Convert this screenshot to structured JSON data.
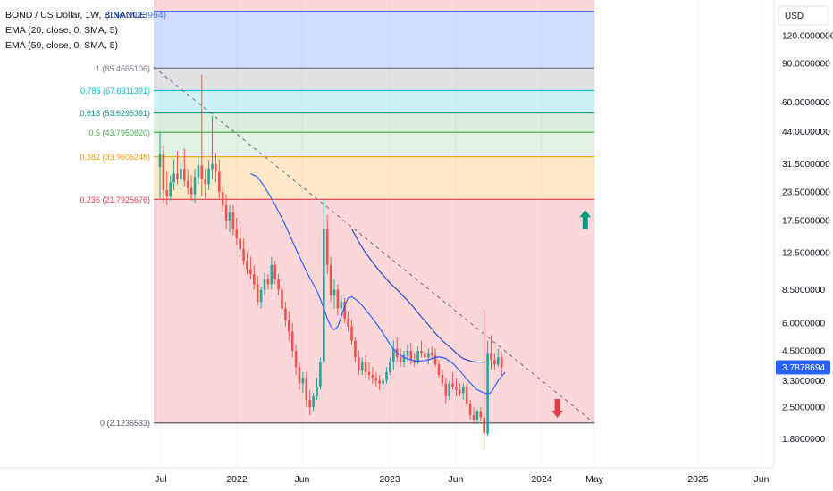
{
  "legend": {
    "title": "BOND / US Dollar, 1W, BINANCE",
    "overlap_value": "(154.3923964)",
    "ema20": "EMA (20, close, 0, SMA, 5)",
    "ema50": "EMA (50, close, 0, SMA, 5)"
  },
  "currency": "USD",
  "colors": {
    "candle_up": "#26a69a",
    "candle_down": "#ef5350",
    "ema20": "#2962ff",
    "ema50": "#2948c8",
    "price_badge": "#2962ff",
    "arrow_up": "#089981",
    "arrow_down": "#e03c4a"
  },
  "chart_data": {
    "type": "candlestick",
    "y_scale": "log",
    "y_ticks": [
      "120.0000000",
      "90.0000000",
      "60.0000000",
      "44.0000000",
      "31.5000000",
      "23.5000000",
      "17.5000000",
      "12.5000000",
      "8.5000000",
      "6.0000000",
      "4.5000000",
      "3.3000000",
      "2.5000000",
      "1.8000000"
    ],
    "x_ticks": [
      "Jul",
      "2022",
      "Jun",
      "2023",
      "Jun",
      "2024",
      "May",
      "2025",
      "Jun"
    ],
    "current_price": "3.7878694",
    "fib_levels": [
      {
        "label": "1 (85.4665106)",
        "value": 85.4665106
      },
      {
        "label": "0.786 (67.6311391)",
        "value": 67.6311391
      },
      {
        "label": "0.618 (53.6295391)",
        "value": 53.6295391
      },
      {
        "label": "0.5 (43.7950820)",
        "value": 43.795082
      },
      {
        "label": "0.382 (33.9606248)",
        "value": 33.9606248
      },
      {
        "label": "0.236 (21.7925676)",
        "value": 21.7925676
      },
      {
        "label": "0 (2.1236533)",
        "value": 2.1236533
      }
    ],
    "fib_extension_top": 154.3923964,
    "candles": [
      {
        "o": 30.5,
        "h": 44.0,
        "l": 22.0,
        "c": 35.0
      },
      {
        "o": 35.0,
        "h": 38.0,
        "l": 21.0,
        "c": 24.0
      },
      {
        "o": 24.0,
        "h": 29.0,
        "l": 20.5,
        "c": 22.5
      },
      {
        "o": 22.5,
        "h": 28.0,
        "l": 21.5,
        "c": 26.0
      },
      {
        "o": 26.0,
        "h": 33.0,
        "l": 24.0,
        "c": 28.5
      },
      {
        "o": 28.5,
        "h": 36.0,
        "l": 25.5,
        "c": 27.0
      },
      {
        "o": 27.0,
        "h": 32.0,
        "l": 24.0,
        "c": 30.0
      },
      {
        "o": 30.0,
        "h": 37.0,
        "l": 25.0,
        "c": 26.5
      },
      {
        "o": 26.5,
        "h": 30.0,
        "l": 23.0,
        "c": 24.5
      },
      {
        "o": 24.5,
        "h": 28.0,
        "l": 21.5,
        "c": 23.0
      },
      {
        "o": 23.0,
        "h": 30.0,
        "l": 21.0,
        "c": 27.5
      },
      {
        "o": 27.5,
        "h": 34.0,
        "l": 25.5,
        "c": 31.0
      },
      {
        "o": 31.0,
        "h": 80.0,
        "l": 22.5,
        "c": 27.0
      },
      {
        "o": 27.0,
        "h": 30.0,
        "l": 22.0,
        "c": 25.5
      },
      {
        "o": 25.5,
        "h": 33.0,
        "l": 24.0,
        "c": 30.0
      },
      {
        "o": 30.0,
        "h": 52.0,
        "l": 27.0,
        "c": 31.5
      },
      {
        "o": 31.5,
        "h": 35.5,
        "l": 26.0,
        "c": 29.0
      },
      {
        "o": 29.0,
        "h": 33.0,
        "l": 22.0,
        "c": 23.5
      },
      {
        "o": 23.5,
        "h": 25.0,
        "l": 19.0,
        "c": 20.5
      },
      {
        "o": 20.5,
        "h": 23.0,
        "l": 16.0,
        "c": 17.5
      },
      {
        "o": 17.5,
        "h": 20.5,
        "l": 15.5,
        "c": 19.0
      },
      {
        "o": 19.0,
        "h": 20.5,
        "l": 15.0,
        "c": 16.0
      },
      {
        "o": 16.0,
        "h": 18.0,
        "l": 13.5,
        "c": 14.5
      },
      {
        "o": 14.5,
        "h": 16.5,
        "l": 12.5,
        "c": 13.0
      },
      {
        "o": 13.0,
        "h": 14.5,
        "l": 11.0,
        "c": 11.5
      },
      {
        "o": 11.5,
        "h": 12.5,
        "l": 10.0,
        "c": 10.5
      },
      {
        "o": 10.5,
        "h": 12.0,
        "l": 9.5,
        "c": 10.0
      },
      {
        "o": 10.0,
        "h": 11.0,
        "l": 8.5,
        "c": 9.0
      },
      {
        "o": 9.0,
        "h": 9.8,
        "l": 7.2,
        "c": 7.5
      },
      {
        "o": 7.5,
        "h": 8.8,
        "l": 7.0,
        "c": 8.5
      },
      {
        "o": 8.5,
        "h": 10.2,
        "l": 8.0,
        "c": 9.5
      },
      {
        "o": 9.5,
        "h": 10.0,
        "l": 8.5,
        "c": 9.0
      },
      {
        "o": 9.0,
        "h": 12.0,
        "l": 8.5,
        "c": 11.0
      },
      {
        "o": 11.0,
        "h": 11.5,
        "l": 9.0,
        "c": 9.5
      },
      {
        "o": 9.5,
        "h": 10.0,
        "l": 8.0,
        "c": 8.5
      },
      {
        "o": 8.5,
        "h": 9.0,
        "l": 6.8,
        "c": 7.0
      },
      {
        "o": 7.0,
        "h": 7.5,
        "l": 5.8,
        "c": 6.2
      },
      {
        "o": 6.2,
        "h": 6.8,
        "l": 5.0,
        "c": 5.5
      },
      {
        "o": 5.5,
        "h": 6.0,
        "l": 4.2,
        "c": 4.5
      },
      {
        "o": 4.5,
        "h": 4.8,
        "l": 3.5,
        "c": 3.8
      },
      {
        "o": 3.8,
        "h": 4.0,
        "l": 3.0,
        "c": 3.2
      },
      {
        "o": 3.2,
        "h": 3.6,
        "l": 2.9,
        "c": 3.4
      },
      {
        "o": 3.4,
        "h": 3.6,
        "l": 2.5,
        "c": 2.7
      },
      {
        "o": 2.7,
        "h": 3.0,
        "l": 2.3,
        "c": 2.5
      },
      {
        "o": 2.5,
        "h": 2.9,
        "l": 2.4,
        "c": 2.8
      },
      {
        "o": 2.8,
        "h": 3.4,
        "l": 2.7,
        "c": 3.1
      },
      {
        "o": 3.1,
        "h": 4.2,
        "l": 3.0,
        "c": 4.0
      },
      {
        "o": 4.0,
        "h": 22.0,
        "l": 3.9,
        "c": 16.0
      },
      {
        "o": 16.0,
        "h": 18.5,
        "l": 10.0,
        "c": 11.0
      },
      {
        "o": 11.0,
        "h": 12.0,
        "l": 7.5,
        "c": 8.0
      },
      {
        "o": 8.0,
        "h": 9.5,
        "l": 7.0,
        "c": 8.5
      },
      {
        "o": 8.5,
        "h": 9.0,
        "l": 6.5,
        "c": 7.0
      },
      {
        "o": 7.0,
        "h": 8.0,
        "l": 6.5,
        "c": 7.5
      },
      {
        "o": 7.5,
        "h": 7.8,
        "l": 6.0,
        "c": 6.3
      },
      {
        "o": 6.3,
        "h": 6.8,
        "l": 5.5,
        "c": 5.8
      },
      {
        "o": 5.8,
        "h": 6.2,
        "l": 4.8,
        "c": 5.0
      },
      {
        "o": 5.0,
        "h": 5.2,
        "l": 4.0,
        "c": 4.2
      },
      {
        "o": 4.2,
        "h": 4.5,
        "l": 3.5,
        "c": 3.7
      },
      {
        "o": 3.7,
        "h": 4.2,
        "l": 3.5,
        "c": 4.0
      },
      {
        "o": 4.0,
        "h": 4.3,
        "l": 3.4,
        "c": 3.6
      },
      {
        "o": 3.6,
        "h": 4.0,
        "l": 3.3,
        "c": 3.5
      },
      {
        "o": 3.5,
        "h": 3.8,
        "l": 3.2,
        "c": 3.4
      },
      {
        "o": 3.4,
        "h": 3.6,
        "l": 3.1,
        "c": 3.3
      },
      {
        "o": 3.3,
        "h": 3.5,
        "l": 3.0,
        "c": 3.2
      },
      {
        "o": 3.2,
        "h": 3.4,
        "l": 3.0,
        "c": 3.3
      },
      {
        "o": 3.3,
        "h": 3.8,
        "l": 3.2,
        "c": 3.6
      },
      {
        "o": 3.6,
        "h": 4.2,
        "l": 3.5,
        "c": 4.0
      },
      {
        "o": 4.0,
        "h": 5.0,
        "l": 3.7,
        "c": 4.6
      },
      {
        "o": 4.6,
        "h": 5.2,
        "l": 4.0,
        "c": 4.2
      },
      {
        "o": 4.2,
        "h": 4.6,
        "l": 3.8,
        "c": 4.0
      },
      {
        "o": 4.0,
        "h": 4.5,
        "l": 3.8,
        "c": 4.3
      },
      {
        "o": 4.3,
        "h": 4.8,
        "l": 4.0,
        "c": 4.5
      },
      {
        "o": 4.5,
        "h": 4.9,
        "l": 3.9,
        "c": 4.1
      },
      {
        "o": 4.1,
        "h": 4.4,
        "l": 3.8,
        "c": 4.0
      },
      {
        "o": 4.0,
        "h": 4.7,
        "l": 3.9,
        "c": 4.5
      },
      {
        "o": 4.5,
        "h": 5.0,
        "l": 4.2,
        "c": 4.4
      },
      {
        "o": 4.4,
        "h": 4.8,
        "l": 4.0,
        "c": 4.2
      },
      {
        "o": 4.2,
        "h": 4.6,
        "l": 3.9,
        "c": 4.4
      },
      {
        "o": 4.4,
        "h": 4.7,
        "l": 4.1,
        "c": 4.3
      },
      {
        "o": 4.3,
        "h": 4.6,
        "l": 3.8,
        "c": 3.9
      },
      {
        "o": 3.9,
        "h": 4.1,
        "l": 3.4,
        "c": 3.5
      },
      {
        "o": 3.5,
        "h": 3.7,
        "l": 3.1,
        "c": 3.2
      },
      {
        "o": 3.2,
        "h": 3.4,
        "l": 2.6,
        "c": 2.8
      },
      {
        "o": 2.8,
        "h": 3.3,
        "l": 2.7,
        "c": 3.2
      },
      {
        "o": 3.2,
        "h": 3.6,
        "l": 3.0,
        "c": 3.1
      },
      {
        "o": 3.1,
        "h": 3.4,
        "l": 2.8,
        "c": 3.0
      },
      {
        "o": 3.0,
        "h": 3.2,
        "l": 2.8,
        "c": 2.9
      },
      {
        "o": 2.9,
        "h": 3.2,
        "l": 2.7,
        "c": 3.1
      },
      {
        "o": 3.1,
        "h": 3.2,
        "l": 2.5,
        "c": 2.6
      },
      {
        "o": 2.6,
        "h": 2.7,
        "l": 2.2,
        "c": 2.3
      },
      {
        "o": 2.3,
        "h": 2.5,
        "l": 2.1,
        "c": 2.2
      },
      {
        "o": 2.2,
        "h": 2.45,
        "l": 2.1,
        "c": 2.4
      },
      {
        "o": 2.4,
        "h": 2.5,
        "l": 2.15,
        "c": 2.25
      },
      {
        "o": 2.25,
        "h": 7.0,
        "l": 1.6,
        "c": 1.9
      },
      {
        "o": 1.9,
        "h": 5.0,
        "l": 1.85,
        "c": 4.4
      },
      {
        "o": 4.4,
        "h": 5.3,
        "l": 3.7,
        "c": 4.1
      },
      {
        "o": 4.1,
        "h": 4.4,
        "l": 3.7,
        "c": 3.9
      },
      {
        "o": 3.9,
        "h": 4.6,
        "l": 3.8,
        "c": 4.2
      },
      {
        "o": 4.2,
        "h": 4.4,
        "l": 3.5,
        "c": 3.79
      }
    ],
    "ema20_values": [
      28.5,
      28.0,
      27.5,
      26.2,
      24.8,
      23.4,
      22.0,
      20.6,
      19.2,
      17.9,
      16.6,
      15.3,
      14.1,
      13.0,
      12.0,
      11.1,
      10.3,
      9.6,
      9.0,
      8.4,
      7.7,
      7.0,
      6.3,
      5.8,
      5.6,
      5.8,
      6.4,
      7.2,
      7.8,
      7.9,
      7.7,
      7.5,
      7.2,
      6.9,
      6.6,
      6.3,
      6.0,
      5.7,
      5.4,
      5.1,
      4.8,
      4.6,
      4.4,
      4.3,
      4.2,
      4.15,
      4.1,
      4.05,
      4.05,
      4.05,
      4.07,
      4.1,
      4.15,
      4.2,
      4.22,
      4.2,
      4.15,
      4.05,
      3.95,
      3.8,
      3.65,
      3.5,
      3.35,
      3.22,
      3.1,
      3.0,
      2.95,
      2.9,
      2.88,
      2.92,
      3.1,
      3.3,
      3.45,
      3.6
    ],
    "ema20_start_index": 26,
    "ema50_values": [
      16.0,
      15.0,
      14.0,
      13.2,
      12.5,
      11.9,
      11.3,
      10.8,
      10.3,
      9.9,
      9.5,
      9.1,
      8.8,
      8.5,
      8.2,
      7.9,
      7.6,
      7.3,
      7.0,
      6.7,
      6.4,
      6.15,
      5.9,
      5.65,
      5.4,
      5.2,
      5.0,
      4.85,
      4.7,
      4.55,
      4.4,
      4.25,
      4.15,
      4.1,
      4.05,
      4.02,
      4.0,
      4.0,
      4.0
    ],
    "ema50_start_index": 55,
    "arrows": [
      {
        "direction": "up",
        "x_index": 122,
        "price": 17.6
      },
      {
        "direction": "down",
        "x_index": 114,
        "price": 2.48
      }
    ]
  }
}
